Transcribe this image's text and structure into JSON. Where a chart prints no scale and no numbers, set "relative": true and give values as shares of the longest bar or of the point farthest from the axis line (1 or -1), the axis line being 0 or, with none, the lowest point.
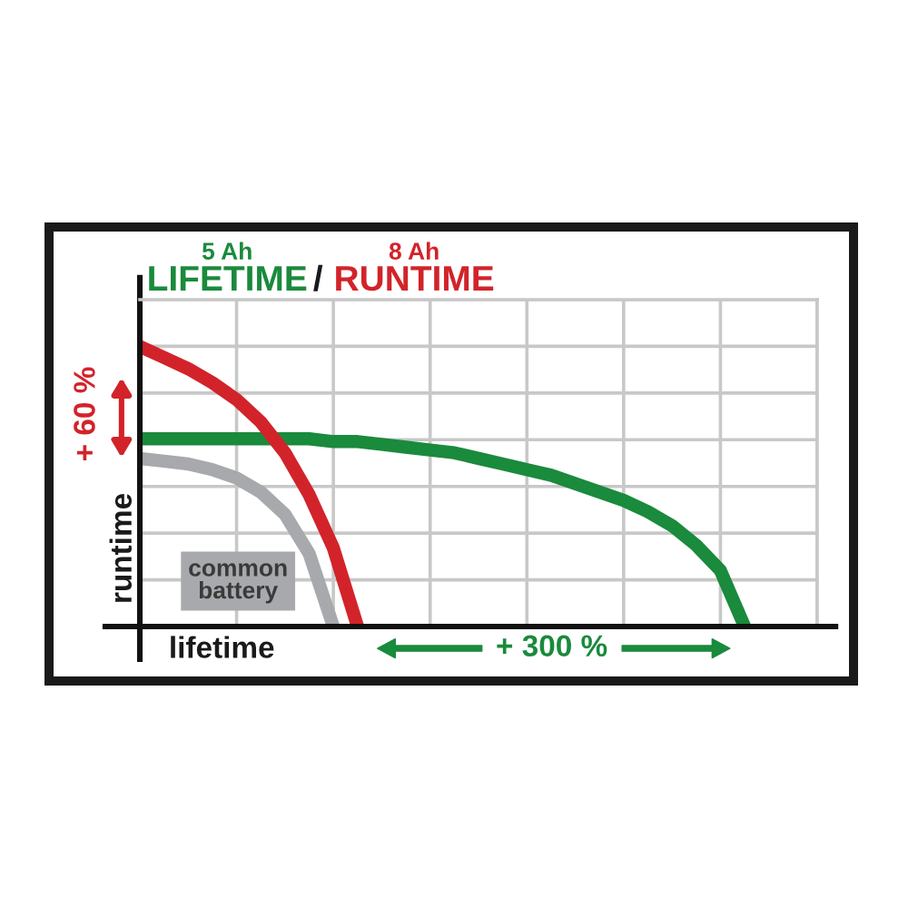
{
  "chart_data": {
    "type": "line",
    "relative": true,
    "xlabel": "lifetime",
    "ylabel": "runtime",
    "annotations": [
      "/",
      "+ 60 %",
      "+ 300 %"
    ],
    "categories": [
      null,
      null,
      null,
      null,
      null,
      null,
      null,
      null,
      null,
      null,
      null,
      null,
      null,
      null,
      null,
      null,
      null,
      null,
      null,
      null,
      null,
      null,
      null,
      null,
      null,
      null,
      null,
      null,
      null
    ],
    "grid": true,
    "line_style": "solid",
    "series": [
      {
        "name": "5 Ah\nLIFETIME",
        "color": "#1a8a3c",
        "values": [
          0.67,
          0.67,
          0.67,
          0.67,
          0.67,
          0.67,
          0.67,
          0.67,
          0.66,
          0.66,
          0.65,
          0.64,
          0.63,
          0.62,
          0.6,
          0.58,
          0.56,
          0.54,
          0.51,
          0.48,
          0.45,
          0.41,
          0.36,
          0.29,
          0.2,
          0,
          null,
          null,
          null
        ]
      },
      {
        "name": "8 Ah\nRUNTIME",
        "color": "#d2232a",
        "values": [
          1,
          0.96,
          0.92,
          0.87,
          0.81,
          0.73,
          0.62,
          0.47,
          0.28,
          0,
          null,
          null,
          null,
          null,
          null,
          null,
          null,
          null,
          null,
          null,
          null,
          null,
          null,
          null,
          null,
          null,
          null,
          null,
          null
        ]
      },
      {
        "name": "common\nbattery",
        "color": "#a7a9ac",
        "values": [
          0.6,
          0.59,
          0.58,
          0.56,
          0.53,
          0.48,
          0.4,
          0.26,
          0,
          null,
          null,
          null,
          null,
          null,
          null,
          null,
          null,
          null,
          null,
          null,
          null,
          null,
          null,
          null,
          null,
          null,
          null,
          null,
          null
        ]
      }
    ]
  }
}
